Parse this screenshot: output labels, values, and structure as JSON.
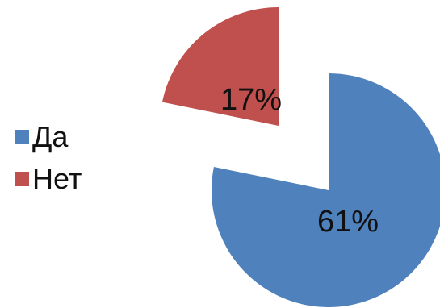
{
  "chart_data": {
    "type": "pie",
    "title": "",
    "categories": [
      "Да",
      "Нет"
    ],
    "values": [
      61,
      17
    ],
    "data_labels": [
      "61%",
      "17%"
    ],
    "colors": [
      "#4f81bd",
      "#c0504d"
    ],
    "legend_position": "left"
  }
}
